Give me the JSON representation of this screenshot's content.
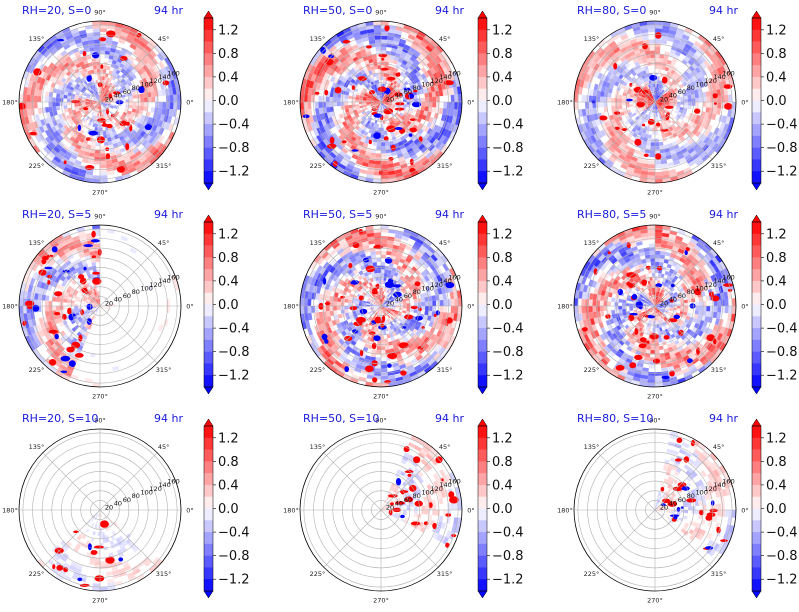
{
  "figure": {
    "colormap": "bwr",
    "colors": {
      "negative": "#0000ff",
      "zero": "#ffffff",
      "positive": "#ff0000",
      "title": "#1a1adb"
    }
  },
  "chart_data": [
    {
      "type": "heatmap",
      "projection": "polar",
      "title_left": "RH=20, S=0",
      "title_right": "94 hr",
      "angle_ticks": [
        "90°",
        "45°",
        "0°",
        "315°",
        "270°",
        "225°",
        "180°",
        "135°"
      ],
      "radial_ticks": [
        "20",
        "40",
        "60",
        "80",
        "100",
        "120",
        "140",
        "160"
      ],
      "colorbar_ticks": [
        "1.2",
        "0.8",
        "0.4",
        "0.0",
        "−0.4",
        "−0.8",
        "−1.2"
      ],
      "clim": [
        -1.4,
        1.4
      ],
      "grid": true
    },
    {
      "type": "heatmap",
      "projection": "polar",
      "title_left": "RH=50, S=0",
      "title_right": "94 hr",
      "angle_ticks": [
        "90°",
        "45°",
        "0°",
        "315°",
        "270°",
        "225°",
        "180°",
        "135°"
      ],
      "radial_ticks": [
        "20",
        "40",
        "60",
        "80",
        "100",
        "120",
        "140",
        "160"
      ],
      "colorbar_ticks": [
        "1.2",
        "0.8",
        "0.4",
        "0.0",
        "−0.4",
        "−0.8",
        "−1.2"
      ],
      "clim": [
        -1.4,
        1.4
      ],
      "grid": true
    },
    {
      "type": "heatmap",
      "projection": "polar",
      "title_left": "RH=80, S=0",
      "title_right": "94 hr",
      "angle_ticks": [
        "90°",
        "45°",
        "0°",
        "315°",
        "270°",
        "225°",
        "180°",
        "135°"
      ],
      "radial_ticks": [
        "20",
        "40",
        "60",
        "80",
        "100",
        "120",
        "140",
        "160"
      ],
      "colorbar_ticks": [
        "1.2",
        "0.8",
        "0.4",
        "0.0",
        "−0.4",
        "−0.8",
        "−1.2"
      ],
      "clim": [
        -1.4,
        1.4
      ],
      "grid": true
    },
    {
      "type": "heatmap",
      "projection": "polar",
      "title_left": "RH=20, S=5",
      "title_right": "94 hr",
      "angle_ticks": [
        "90°",
        "45°",
        "0°",
        "315°",
        "270°",
        "225°",
        "180°",
        "135°"
      ],
      "radial_ticks": [
        "20",
        "40",
        "60",
        "80",
        "100",
        "120",
        "140",
        "160"
      ],
      "colorbar_ticks": [
        "1.2",
        "0.8",
        "0.4",
        "0.0",
        "−0.4",
        "−0.8",
        "−1.2"
      ],
      "clim": [
        -1.4,
        1.4
      ],
      "grid": true
    },
    {
      "type": "heatmap",
      "projection": "polar",
      "title_left": "RH=50, S=5",
      "title_right": "94 hr",
      "angle_ticks": [
        "90°",
        "45°",
        "0°",
        "315°",
        "270°",
        "225°",
        "180°",
        "135°"
      ],
      "radial_ticks": [
        "20",
        "40",
        "60",
        "80",
        "100",
        "120",
        "140",
        "160"
      ],
      "colorbar_ticks": [
        "1.2",
        "0.8",
        "0.4",
        "0.0",
        "−0.4",
        "−0.8",
        "−1.2"
      ],
      "clim": [
        -1.4,
        1.4
      ],
      "grid": true
    },
    {
      "type": "heatmap",
      "projection": "polar",
      "title_left": "RH=80, S=5",
      "title_right": "94 hr",
      "angle_ticks": [
        "90°",
        "45°",
        "0°",
        "315°",
        "270°",
        "225°",
        "180°",
        "135°"
      ],
      "radial_ticks": [
        "20",
        "40",
        "60",
        "80",
        "100",
        "120",
        "140",
        "160"
      ],
      "colorbar_ticks": [
        "1.2",
        "0.8",
        "0.4",
        "0.0",
        "−0.4",
        "−0.8",
        "−1.2"
      ],
      "clim": [
        -1.4,
        1.4
      ],
      "grid": true
    },
    {
      "type": "heatmap",
      "projection": "polar",
      "title_left": "RH=20, S=10",
      "title_right": "94 hr",
      "angle_ticks": [
        "90°",
        "45°",
        "0°",
        "315°",
        "270°",
        "225°",
        "180°",
        "135°"
      ],
      "radial_ticks": [
        "20",
        "40",
        "60",
        "80",
        "100",
        "120",
        "140",
        "160"
      ],
      "colorbar_ticks": [
        "1.2",
        "0.8",
        "0.4",
        "0.0",
        "−0.4",
        "−0.8",
        "−1.2"
      ],
      "clim": [
        -1.4,
        1.4
      ],
      "grid": true
    },
    {
      "type": "heatmap",
      "projection": "polar",
      "title_left": "RH=50, S=10",
      "title_right": "94 hr",
      "angle_ticks": [
        "90°",
        "45°",
        "0°",
        "315°",
        "270°",
        "225°",
        "180°",
        "135°"
      ],
      "radial_ticks": [
        "20",
        "40",
        "60",
        "80",
        "100",
        "120",
        "140",
        "160"
      ],
      "colorbar_ticks": [
        "1.2",
        "0.8",
        "0.4",
        "0.0",
        "−0.4",
        "−0.8",
        "−1.2"
      ],
      "clim": [
        -1.4,
        1.4
      ],
      "grid": true
    },
    {
      "type": "heatmap",
      "projection": "polar",
      "title_left": "RH=80, S=10",
      "title_right": "94 hr",
      "angle_ticks": [
        "90°",
        "45°",
        "0°",
        "315°",
        "270°",
        "225°",
        "180°",
        "135°"
      ],
      "radial_ticks": [
        "20",
        "40",
        "60",
        "80",
        "100",
        "120",
        "140",
        "160"
      ],
      "colorbar_ticks": [
        "1.2",
        "0.8",
        "0.4",
        "0.0",
        "−0.4",
        "−0.8",
        "−1.2"
      ],
      "clim": [
        -1.4,
        1.4
      ],
      "grid": true
    }
  ]
}
